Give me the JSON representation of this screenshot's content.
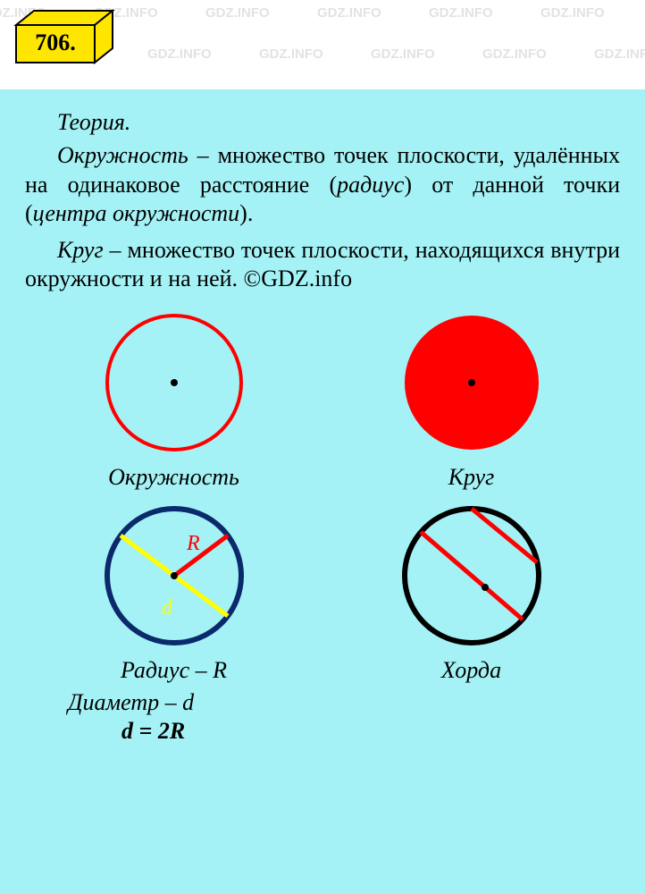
{
  "watermark_text": "GDZ.INFO",
  "badge": {
    "number": "706.",
    "fill_color": "#ffe600",
    "border_color": "#000000"
  },
  "panel": {
    "background_color": "#a4f2f5"
  },
  "theory": {
    "title": "Теория.",
    "paragraph1_prefix": "Окружность",
    "paragraph1_mid": " – множество точек плоскости, удалённых на одинаковое расстояние (",
    "paragraph1_radius": "радиус",
    "paragraph1_mid2": ") от данной точки (",
    "paragraph1_center": "центра окружности",
    "paragraph1_end": ").",
    "paragraph2_prefix": "Круг",
    "paragraph2_rest": " – множество точек плоскости, находящихся внутри окружности и на ней. ©GDZ.info"
  },
  "figures": {
    "circle_outline": {
      "label": "Окружность",
      "stroke_color": "#ff0000",
      "stroke_width": 4,
      "radius": 75,
      "center_dot_color": "#000000"
    },
    "circle_filled": {
      "label": "Круг",
      "fill_color": "#ff0000",
      "radius": 75,
      "center_dot_color": "#000000"
    },
    "radius_diameter": {
      "stroke_color": "#0b2a6b",
      "stroke_width": 6,
      "radius": 75,
      "radius_line_color": "#ff0000",
      "radius_label": "R",
      "radius_label_color": "#ff0000",
      "diameter_line_color": "#ffff00",
      "diameter_label": "d",
      "diameter_label_color": "#ffff00",
      "center_dot_color": "#000000"
    },
    "chord": {
      "label": "Хорда",
      "stroke_color": "#000000",
      "stroke_width": 6,
      "radius": 75,
      "chord_color": "#ff0000",
      "center_dot_color": "#000000"
    }
  },
  "labels": {
    "radius": "Радиус – R",
    "diameter": "Диаметр – d",
    "formula": "d = 2R",
    "chord_col_label": "Хорда"
  }
}
